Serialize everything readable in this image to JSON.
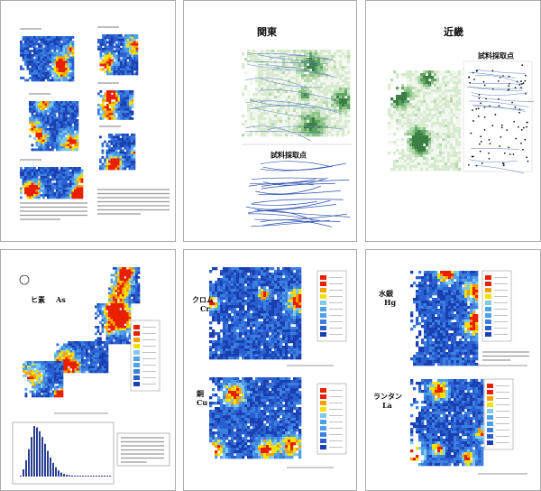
{
  "pages": {
    "kanto": {
      "title": "関東",
      "sample_label": "試料採取点"
    },
    "kinki": {
      "title": "近畿",
      "sample_label": "試料採取点"
    },
    "arsenic": {
      "name": "ヒ素",
      "symbol": "As"
    },
    "chiba": {
      "maps": [
        {
          "name": "クロム",
          "symbol": "Cr"
        },
        {
          "name": "銅",
          "symbol": "Cu"
        }
      ]
    },
    "mercury": {
      "maps": [
        {
          "name": "水銀",
          "symbol": "Hg"
        },
        {
          "name": "ランタン",
          "symbol": "La"
        }
      ]
    }
  }
}
